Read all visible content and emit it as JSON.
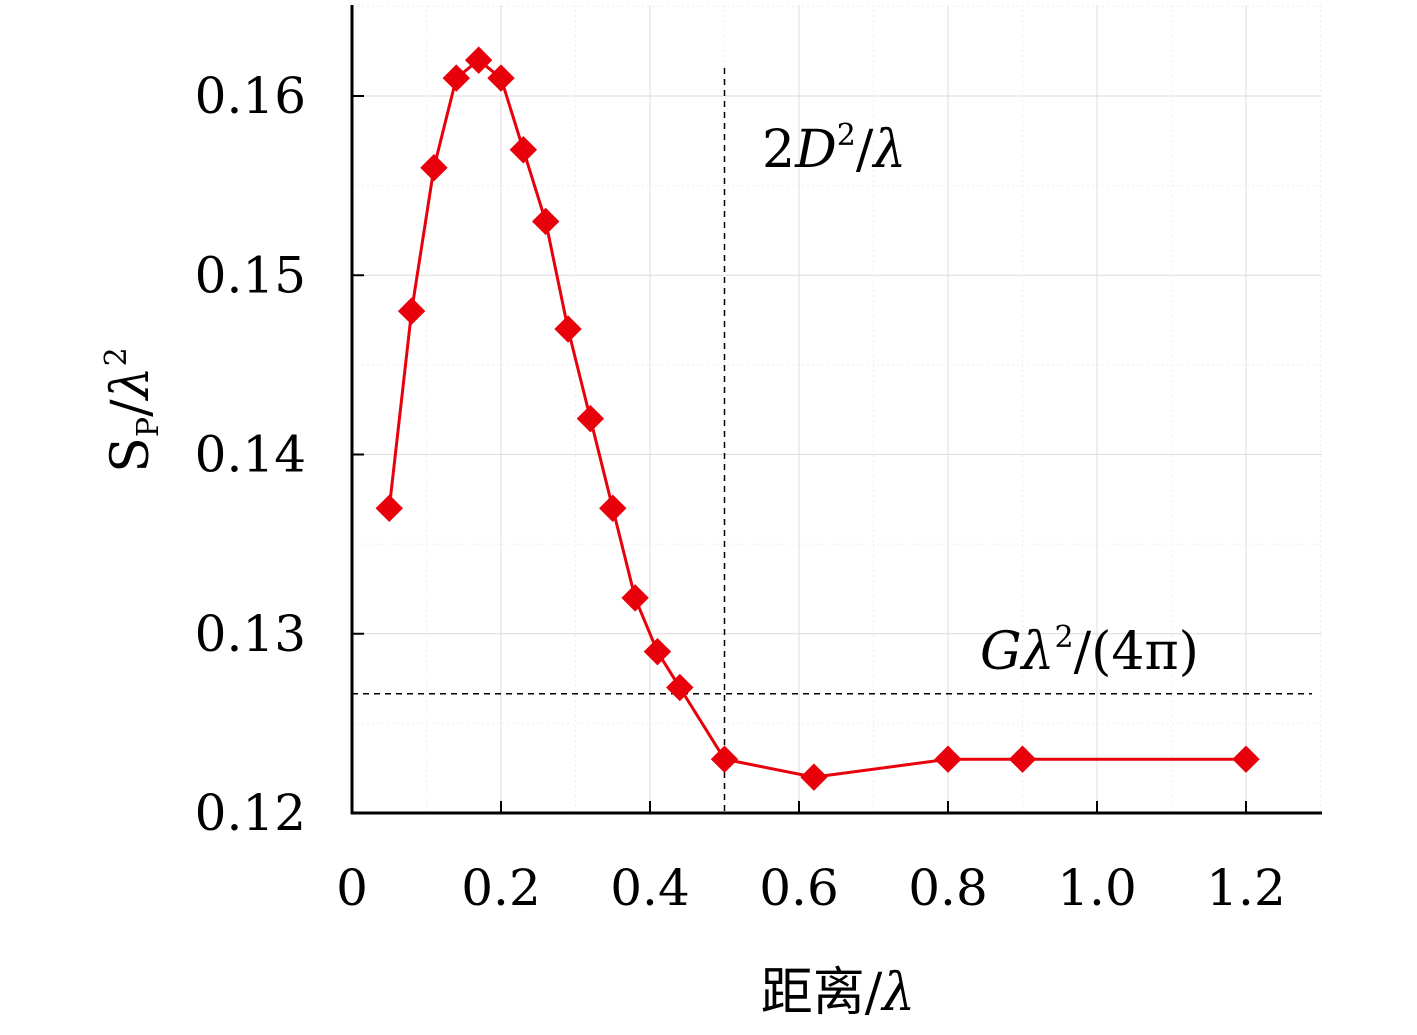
{
  "chart_data": {
    "type": "line",
    "xlabel": {
      "main": "距离/",
      "var": "λ"
    },
    "ylabel": {
      "s": "S",
      "sub": "P",
      "slash": "/",
      "var": "λ",
      "sup": "2"
    },
    "xlim": [
      0,
      1.3
    ],
    "ylim": [
      0.12,
      0.165
    ],
    "x_ticks": [
      0,
      0.2,
      0.4,
      0.6,
      0.8,
      1.0,
      1.2
    ],
    "x_tick_labels": [
      "0",
      "0.2",
      "0.4",
      "0.6",
      "0.8",
      "1.0",
      "1.2"
    ],
    "y_ticks": [
      0.12,
      0.13,
      0.14,
      0.15,
      0.16
    ],
    "y_tick_labels": [
      "0.12",
      "0.13",
      "0.14",
      "0.15",
      "0.16"
    ],
    "grid": true,
    "series": [
      {
        "color": "#e8000b",
        "marker": "diamond",
        "x": [
          0.05,
          0.08,
          0.11,
          0.14,
          0.17,
          0.2,
          0.23,
          0.26,
          0.29,
          0.32,
          0.35,
          0.38,
          0.41,
          0.44,
          0.5,
          0.62,
          0.8,
          0.9,
          1.2
        ],
        "y": [
          0.137,
          0.148,
          0.156,
          0.161,
          0.162,
          0.161,
          0.157,
          0.153,
          0.147,
          0.142,
          0.137,
          0.132,
          0.129,
          0.127,
          0.123,
          0.122,
          0.123,
          0.123,
          0.123
        ]
      }
    ],
    "reference_lines": [
      {
        "orientation": "vertical",
        "value": 0.5,
        "style": "dashed",
        "label": {
          "n": "2",
          "v": "D",
          "sup": "2",
          "rest": "/",
          "var": "λ"
        }
      },
      {
        "orientation": "horizontal",
        "value": 0.12665,
        "style": "dashed",
        "label": {
          "v": "G",
          "var": "λ",
          "sup": "2",
          "rest": "/(4π)"
        }
      }
    ]
  }
}
